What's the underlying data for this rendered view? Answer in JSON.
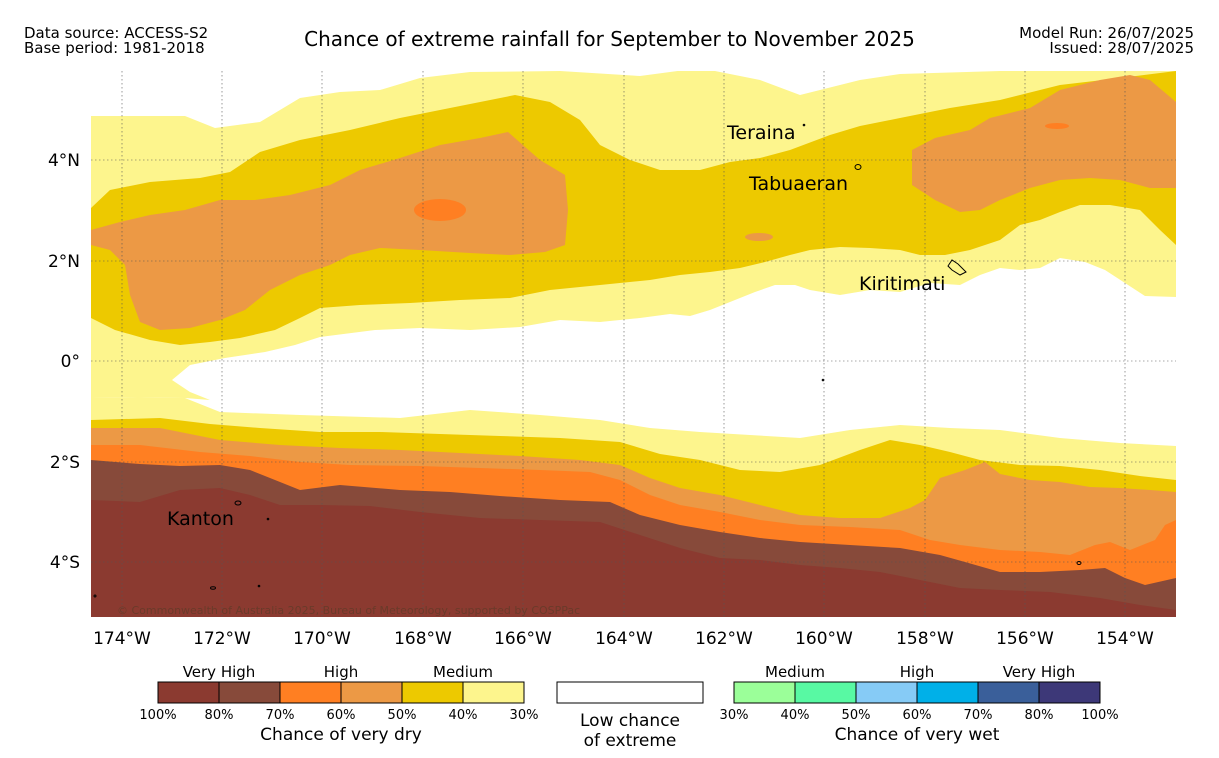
{
  "header": {
    "source_line": "Data source: ACCESS-S2",
    "base_line": "Base period: 1981-2018",
    "title": "Chance of extreme rainfall for September to November 2025",
    "model_run": "Model Run: 26/07/2025",
    "issued": "Issued: 28/07/2025"
  },
  "map": {
    "places": [
      "Teraina",
      "Tabuaeran",
      "Kiritimati",
      "Kanton"
    ],
    "lon_ticks": [
      "174°W",
      "172°W",
      "170°W",
      "168°W",
      "166°W",
      "164°W",
      "162°W",
      "160°W",
      "158°W",
      "156°W",
      "154°W"
    ],
    "lat_ticks": [
      "4°N",
      "2°N",
      "0°",
      "2°S",
      "4°S"
    ],
    "copyright": "© Commonwealth of Australia 2025, Bureau of Meteorology, supported by COSPPac"
  },
  "legend": {
    "dry": {
      "levels": [
        "Very High",
        "High",
        "Medium"
      ],
      "colors": [
        "#8b3a30",
        "#874a3a",
        "#ff7f22",
        "#ec9945",
        "#edc900",
        "#fdf58d"
      ],
      "ticks": [
        "100%",
        "80%",
        "70%",
        "60%",
        "50%",
        "40%",
        "30%"
      ],
      "caption": "Chance of very dry"
    },
    "neutral": {
      "line1": "Low chance",
      "line2": "of extreme"
    },
    "wet": {
      "levels": [
        "Medium",
        "High",
        "Very High"
      ],
      "colors": [
        "#9bff99",
        "#58f9a3",
        "#86cbf6",
        "#00b0e8",
        "#3a5f9a",
        "#3d3878"
      ],
      "ticks": [
        "30%",
        "40%",
        "50%",
        "60%",
        "70%",
        "80%",
        "100%"
      ],
      "caption": "Chance of very wet"
    }
  }
}
